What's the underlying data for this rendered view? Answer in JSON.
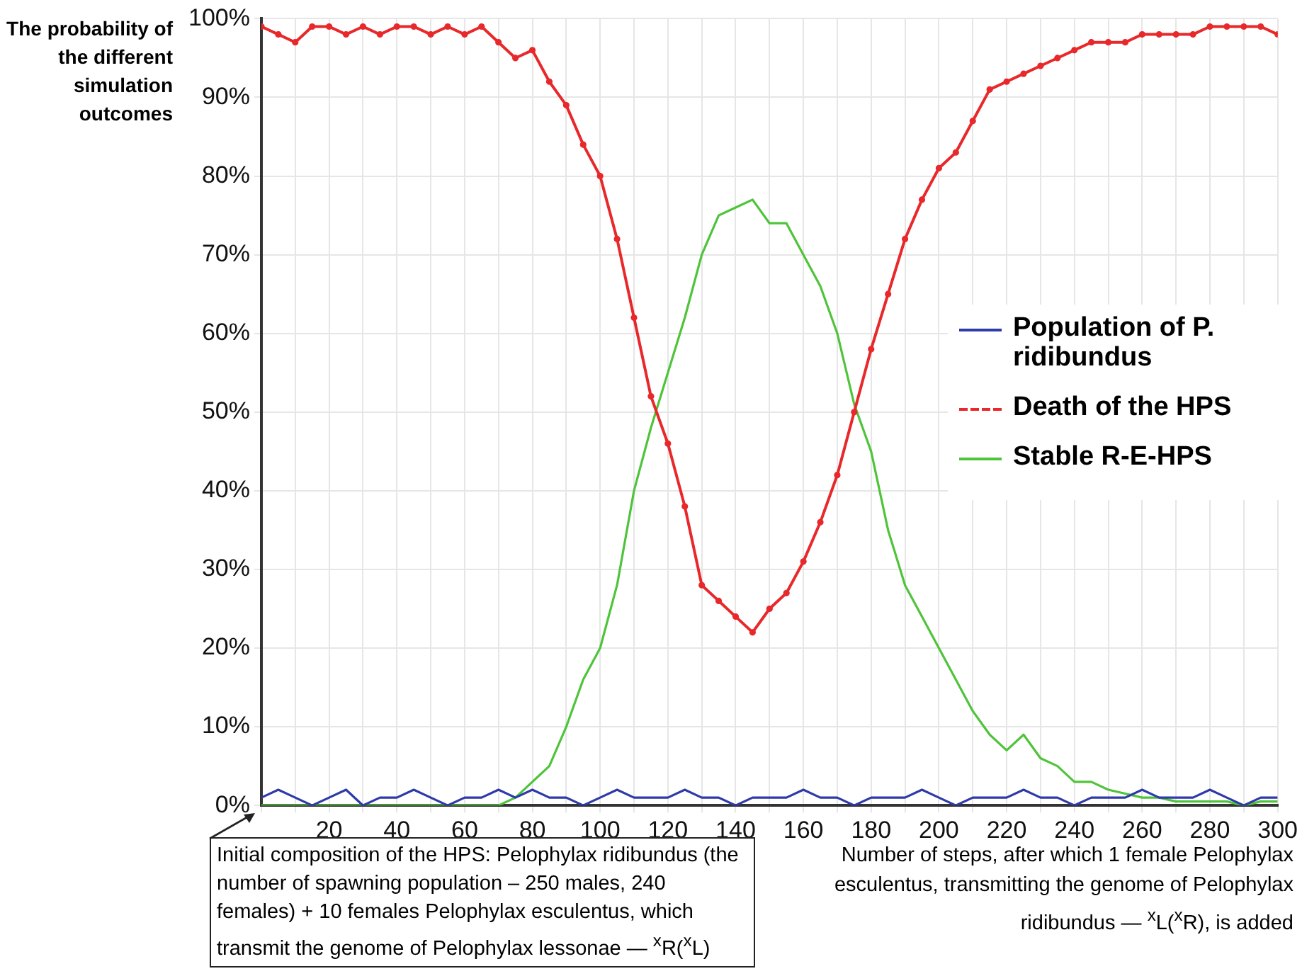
{
  "chart_data": {
    "type": "line",
    "ylabel": "The probability of the different simulation outcomes",
    "xlabel": "Number of steps, after which 1 female Pelophylax esculentus, transmitting the genome of Pelophylax ridibundus — $^{x}$L($^{x}$R), is added",
    "annotations": [
      "Initial composition of the HPS: Pelophylax ridibundus (the number of spawning population – 250 males, 240 females) + 10 females Pelophylax esculentus, which transmit the genome of Pelophylax lessonae — $^{x}$R($^{x}$L)"
    ],
    "x": [
      0,
      5,
      10,
      15,
      20,
      25,
      30,
      35,
      40,
      45,
      50,
      55,
      60,
      65,
      70,
      75,
      80,
      85,
      90,
      95,
      100,
      105,
      110,
      115,
      120,
      125,
      130,
      135,
      140,
      145,
      150,
      155,
      160,
      165,
      170,
      175,
      180,
      185,
      190,
      195,
      200,
      205,
      210,
      215,
      220,
      225,
      230,
      235,
      240,
      245,
      250,
      255,
      260,
      265,
      270,
      275,
      280,
      285,
      290,
      295,
      300
    ],
    "xlim": [
      0,
      300
    ],
    "xticks": [
      {
        "value": 0,
        "label": null
      },
      {
        "value": 10,
        "label": null
      },
      20,
      {
        "value": 30,
        "label": null
      },
      40,
      {
        "value": 50,
        "label": null
      },
      60,
      {
        "value": 70,
        "label": null
      },
      80,
      {
        "value": 90,
        "label": null
      },
      100,
      {
        "value": 110,
        "label": null
      },
      120,
      {
        "value": 130,
        "label": null
      },
      140,
      {
        "value": 150,
        "label": null
      },
      160,
      {
        "value": 170,
        "label": null
      },
      180,
      {
        "value": 190,
        "label": null
      },
      200,
      {
        "value": 210,
        "label": null
      },
      220,
      {
        "value": 230,
        "label": null
      },
      240,
      {
        "value": 250,
        "label": null
      },
      260,
      {
        "value": 270,
        "label": null
      },
      280,
      {
        "value": 290,
        "label": null
      },
      300
    ],
    "ylim": [
      0,
      100
    ],
    "yticks": [
      {
        "value": 0,
        "label": "0%"
      },
      {
        "value": 10,
        "label": "10%"
      },
      {
        "value": 20,
        "label": "20%"
      },
      {
        "value": 30,
        "label": "30%"
      },
      {
        "value": 40,
        "label": "40%"
      },
      {
        "value": 50,
        "label": "50%"
      },
      {
        "value": 60,
        "label": "60%"
      },
      {
        "value": 70,
        "label": "70%"
      },
      {
        "value": 80,
        "label": "80%"
      },
      {
        "value": 90,
        "label": "90%"
      },
      {
        "value": 100,
        "label": "100%"
      }
    ],
    "grid": true,
    "legend": "right",
    "series": [
      {
        "name": "Population of P. ridibundus",
        "color": "#2e3aa8",
        "values": [
          1,
          2,
          1,
          0,
          1,
          2,
          0,
          1,
          1,
          2,
          1,
          0,
          1,
          1,
          2,
          1,
          2,
          1,
          1,
          0,
          1,
          2,
          1,
          1,
          1,
          2,
          1,
          1,
          0,
          1,
          1,
          1,
          2,
          1,
          1,
          0,
          1,
          1,
          1,
          2,
          1,
          0,
          1,
          1,
          1,
          2,
          1,
          1,
          0,
          1,
          1,
          1,
          2,
          1,
          1,
          1,
          2,
          1,
          0,
          1,
          1
        ]
      },
      {
        "name": "Death of the HPS",
        "color": "#e8282a",
        "marker": "circle",
        "values": [
          99,
          98,
          97,
          99,
          99,
          98,
          99,
          98,
          99,
          99,
          98,
          99,
          98,
          99,
          97,
          95,
          96,
          92,
          89,
          84,
          80,
          72,
          62,
          52,
          46,
          38,
          28,
          26,
          24,
          22,
          25,
          27,
          31,
          36,
          42,
          50,
          58,
          65,
          72,
          77,
          81,
          83,
          87,
          91,
          92,
          93,
          94,
          95,
          96,
          97,
          97,
          97,
          98,
          98,
          98,
          98,
          99,
          99,
          99,
          99,
          98
        ]
      },
      {
        "name": "Stable R-E-HPS",
        "color": "#4fc43a",
        "values": [
          0,
          0,
          0,
          0,
          0,
          0,
          0,
          0,
          0,
          0,
          0,
          0,
          0,
          0,
          0,
          1,
          3,
          5,
          10,
          16,
          20,
          28,
          40,
          48,
          55,
          62,
          70,
          75,
          76,
          77,
          74,
          74,
          70,
          66,
          60,
          51,
          45,
          35,
          28,
          24,
          20,
          16,
          12,
          9,
          7,
          9,
          6,
          5,
          3,
          3,
          2,
          1.5,
          1,
          1,
          0.5,
          0.5,
          0.5,
          0.5,
          0,
          0.5,
          0.5
        ]
      }
    ]
  }
}
